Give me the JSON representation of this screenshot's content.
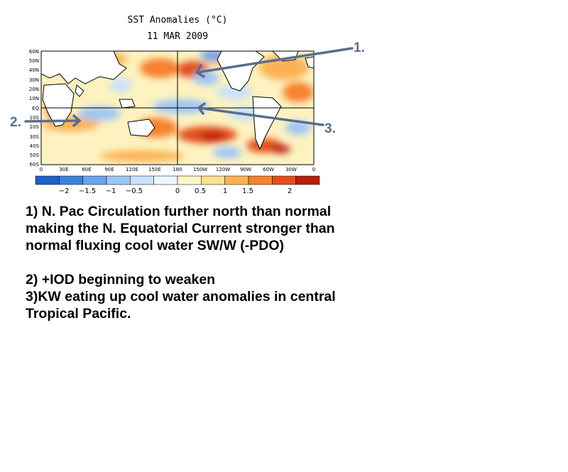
{
  "title": "SST Anomalies (°C)",
  "date": "11 MAR 2009",
  "lat_labels": [
    "60N",
    "50N",
    "40N",
    "30N",
    "20N",
    "10N",
    "EQ",
    "10S",
    "20S",
    "30S",
    "40S",
    "50S",
    "60S"
  ],
  "lon_labels": [
    "0",
    "30E",
    "60E",
    "90E",
    "120E",
    "150E",
    "180",
    "150W",
    "120W",
    "90W",
    "60W",
    "30W",
    "0"
  ],
  "colorbar": {
    "colors": [
      "#1e5fc8",
      "#3c82dc",
      "#6aa4ea",
      "#9cc6f4",
      "#c8e2fb",
      "#eaf6ff",
      "#fdf7c8",
      "#fde090",
      "#fbb255",
      "#f5822e",
      "#e24f1a",
      "#b81d0c"
    ],
    "tick_labels": [
      "−2",
      "−1.5",
      "−1",
      "−0.5",
      "0",
      "0.5",
      "1",
      "1.5",
      "2"
    ]
  },
  "annotations": [
    "1.",
    "2.",
    "3."
  ],
  "arrow_color": "#5b6d8c",
  "notes": {
    "n1": [
      "1) N. Pac Circulation further north than normal",
      "making the N. Equatorial Current stronger than",
      "normal fluxing cool water SW/W (-PDO)"
    ],
    "n2": "2) +IOD beginning to weaken",
    "n3": [
      "3)KW eating up cool water anomalies in central",
      "Tropical Pacific."
    ]
  }
}
